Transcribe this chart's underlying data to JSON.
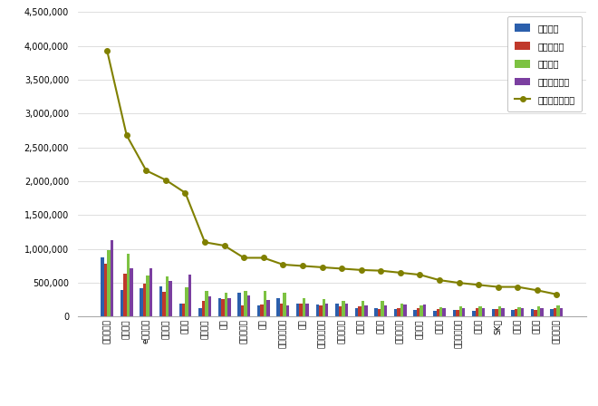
{
  "categories": [
    "힐스테이트",
    "푸르지오",
    "e편한세상",
    "롯데캐슬",
    "레미안",
    "아이파크",
    "위브",
    "한화포레나",
    "자이",
    "호반베르디움",
    "더샵",
    "서희스타힐스",
    "한라비발디",
    "우미린",
    "하늘채",
    "더블래티늄",
    "센트레빌",
    "코아루",
    "동원로얄듀크",
    "리슈빌",
    "SK뷰",
    "스위첸",
    "데시앙",
    "벽산블루밍"
  ],
  "참여지수": [
    870000,
    390000,
    420000,
    450000,
    200000,
    130000,
    280000,
    350000,
    170000,
    280000,
    200000,
    180000,
    200000,
    120000,
    130000,
    110000,
    100000,
    80000,
    100000,
    80000,
    110000,
    100000,
    110000,
    110000
  ],
  "미디어지수": [
    780000,
    640000,
    490000,
    370000,
    190000,
    240000,
    260000,
    170000,
    180000,
    190000,
    200000,
    160000,
    150000,
    150000,
    110000,
    120000,
    120000,
    110000,
    100000,
    130000,
    110000,
    110000,
    100000,
    120000
  ],
  "소통지수": [
    990000,
    930000,
    610000,
    600000,
    430000,
    380000,
    350000,
    380000,
    380000,
    350000,
    270000,
    260000,
    230000,
    230000,
    240000,
    200000,
    170000,
    140000,
    150000,
    150000,
    150000,
    140000,
    150000,
    160000
  ],
  "커뮤니티지수": [
    1130000,
    720000,
    720000,
    530000,
    620000,
    300000,
    270000,
    310000,
    250000,
    170000,
    190000,
    190000,
    200000,
    160000,
    170000,
    180000,
    180000,
    120000,
    120000,
    130000,
    130000,
    120000,
    130000,
    130000
  ],
  "브랜드평판지수": [
    3930000,
    2680000,
    2160000,
    2020000,
    1830000,
    1100000,
    1050000,
    870000,
    870000,
    770000,
    750000,
    730000,
    710000,
    690000,
    680000,
    650000,
    620000,
    540000,
    500000,
    470000,
    440000,
    440000,
    390000,
    330000
  ],
  "bar_colors": [
    "#2b5fac",
    "#c0392b",
    "#7dc242",
    "#7b3fa0"
  ],
  "line_color": "#808000",
  "ylim": [
    0,
    4500000
  ],
  "yticks": [
    0,
    500000,
    1000000,
    1500000,
    2000000,
    2500000,
    3000000,
    3500000,
    4000000,
    4500000
  ],
  "legend_labels": [
    "참여지수",
    "미디어지수",
    "소통지수",
    "커뮤니티지수",
    "브랜드평판지수"
  ],
  "background_color": "#ffffff",
  "grid_color": "#d0d0d0"
}
